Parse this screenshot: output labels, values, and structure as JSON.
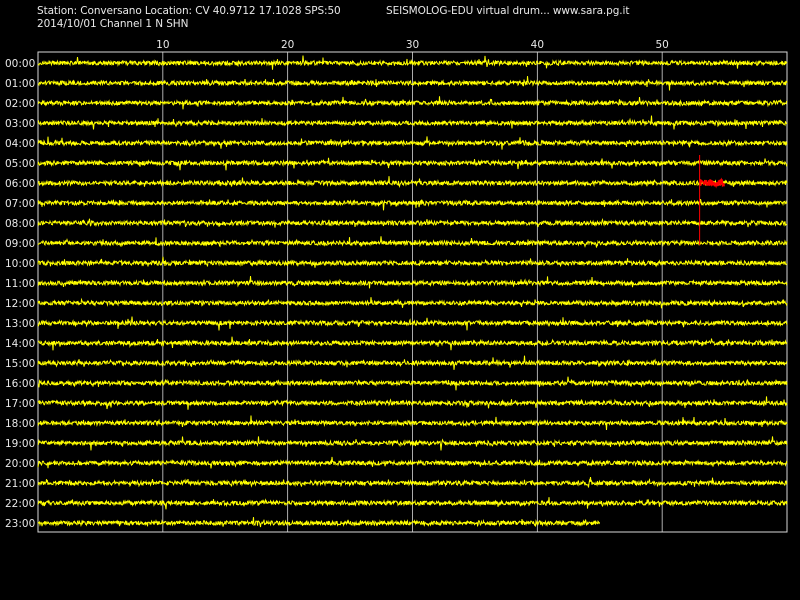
{
  "header": {
    "station_line": "Station: Conversano Location: CV 40.9712 17.1028 SPS:50",
    "program_line": "SEISMOLOG-EDU virtual drum... www.sara.pg.it",
    "date_line": "2014/10/01  Channel 1 N SHN"
  },
  "colors": {
    "background": "#000000",
    "trace": "#ffff00",
    "event_marker": "#ff0000",
    "grid": "#d8d8d8",
    "text": "#e8e8e8"
  },
  "chart_data": {
    "type": "line",
    "title": "",
    "xlabel": "",
    "ylabel": "",
    "x_unit_hint": "minutes",
    "xlim": [
      0,
      60
    ],
    "x_ticks": [
      10,
      20,
      30,
      40,
      50
    ],
    "grid": true,
    "rows": [
      "00:00",
      "01:00",
      "02:00",
      "03:00",
      "04:00",
      "05:00",
      "06:00",
      "07:00",
      "08:00",
      "09:00",
      "10:00",
      "11:00",
      "12:00",
      "13:00",
      "14:00",
      "15:00",
      "16:00",
      "17:00",
      "18:00",
      "19:00",
      "20:00",
      "21:00",
      "22:00",
      "23:00"
    ],
    "row_end_minute": [
      60,
      60,
      60,
      60,
      60,
      60,
      60,
      60,
      60,
      60,
      60,
      60,
      60,
      60,
      60,
      60,
      60,
      60,
      60,
      60,
      60,
      60,
      60,
      45
    ],
    "event": {
      "row": "06:00",
      "minute_start": 53,
      "minute_end": 55,
      "vertical_from_row": "05:00",
      "vertical_to_row": "09:00"
    }
  }
}
